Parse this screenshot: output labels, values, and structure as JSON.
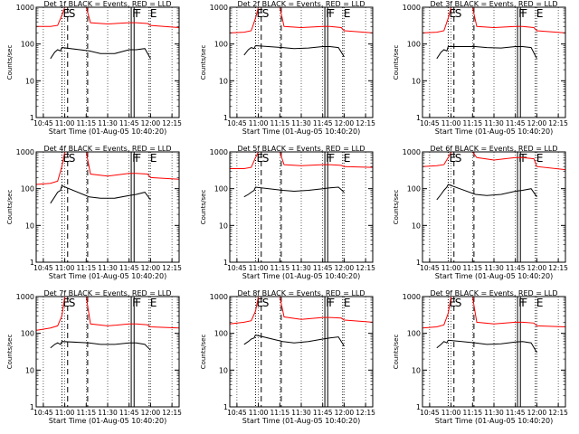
{
  "chart_data": {
    "type": "line",
    "y_scale": "log",
    "ylim": [
      1,
      1000
    ],
    "ytick_labels": [
      "1",
      "10",
      "100",
      "1000"
    ],
    "xtick_labels": [
      "10:45",
      "11:00",
      "11:15",
      "11:30",
      "11:45",
      "12:00",
      "12:15"
    ],
    "xlim": [
      "10:40",
      "12:20"
    ],
    "xlabel": "Start Time (01-Aug-05 10:40:20)",
    "ylabel": "Counts/sec",
    "grid": "dotted vertical lines",
    "colors": {
      "events": "#000000",
      "lld": "#ff0000"
    },
    "markers": [
      {
        "label": "E",
        "time": "10:58",
        "style": "dotted"
      },
      {
        "label": "S",
        "time": "11:02",
        "style": "dashed"
      },
      {
        "label": "",
        "time": "11:16",
        "style": "dashed"
      },
      {
        "label": "F",
        "time": "11:46.5",
        "style": "solid"
      },
      {
        "label": "F",
        "time": "11:48.5",
        "style": "solid"
      },
      {
        "label": "E",
        "time": "11:59",
        "style": "dotted"
      }
    ],
    "panels": [
      {
        "title": "Det 1f BLACK = Events, RED = LLD",
        "series": [
          {
            "name": "Events",
            "x": [
              "10:50",
              "10:53",
              "10:55",
              "10:57",
              "10:58",
              "11:17",
              "11:25",
              "11:35",
              "11:45",
              "11:50",
              "11:56",
              "12:00"
            ],
            "values": [
              40,
              60,
              70,
              65,
              80,
              65,
              55,
              55,
              70,
              70,
              75,
              40
            ]
          },
          {
            "name": "LLD",
            "x": [
              "10:40",
              "10:50",
              "10:55",
              "10:58",
              "11:00",
              "11:15",
              "11:18",
              "11:30",
              "11:45",
              "11:50",
              "11:58",
              "12:00",
              "12:20"
            ],
            "values": [
              300,
              300,
              320,
              600,
              1000,
              1000,
              380,
              350,
              380,
              380,
              360,
              320,
              280
            ]
          }
        ]
      },
      {
        "title": "Det 2f BLACK = Events, RED = LLD",
        "series": [
          {
            "name": "Events",
            "x": [
              "10:50",
              "10:53",
              "10:55",
              "10:57",
              "10:58",
              "11:17",
              "11:25",
              "11:35",
              "11:45",
              "11:50",
              "11:56",
              "12:00"
            ],
            "values": [
              50,
              70,
              80,
              75,
              90,
              80,
              75,
              78,
              85,
              85,
              80,
              45
            ]
          },
          {
            "name": "LLD",
            "x": [
              "10:40",
              "10:50",
              "10:55",
              "10:58",
              "11:00",
              "11:15",
              "11:18",
              "11:30",
              "11:45",
              "11:50",
              "11:58",
              "12:00",
              "12:20"
            ],
            "values": [
              200,
              210,
              230,
              500,
              1000,
              1000,
              300,
              280,
              300,
              300,
              280,
              230,
              200
            ]
          }
        ]
      },
      {
        "title": "Det 3f BLACK = Events, RED = LLD",
        "series": [
          {
            "name": "Events",
            "x": [
              "10:50",
              "10:53",
              "10:55",
              "10:57",
              "10:58",
              "11:17",
              "11:25",
              "11:35",
              "11:45",
              "11:50",
              "11:56",
              "12:00"
            ],
            "values": [
              40,
              60,
              70,
              65,
              85,
              85,
              80,
              78,
              85,
              85,
              80,
              40
            ]
          },
          {
            "name": "LLD",
            "x": [
              "10:40",
              "10:50",
              "10:55",
              "10:58",
              "11:00",
              "11:15",
              "11:18",
              "11:30",
              "11:45",
              "11:50",
              "11:58",
              "12:00",
              "12:20"
            ],
            "values": [
              200,
              210,
              230,
              500,
              1000,
              1000,
              300,
              280,
              300,
              300,
              280,
              230,
              200
            ]
          }
        ]
      },
      {
        "title": "Det 4f BLACK = Events, RED = LLD",
        "series": [
          {
            "name": "Events",
            "x": [
              "10:50",
              "10:53",
              "10:55",
              "10:57",
              "10:58",
              "11:17",
              "11:25",
              "11:35",
              "11:45",
              "11:50",
              "11:56",
              "12:00"
            ],
            "values": [
              40,
              60,
              80,
              90,
              120,
              60,
              55,
              55,
              65,
              70,
              80,
              50
            ]
          },
          {
            "name": "LLD",
            "x": [
              "10:40",
              "10:50",
              "10:55",
              "10:58",
              "11:00",
              "11:15",
              "11:18",
              "11:30",
              "11:45",
              "11:50",
              "11:58",
              "12:00",
              "12:20"
            ],
            "values": [
              130,
              140,
              160,
              400,
              1000,
              1000,
              250,
              220,
              260,
              260,
              250,
              200,
              180
            ]
          }
        ]
      },
      {
        "title": "Det 5f BLACK = Events, RED = LLD",
        "series": [
          {
            "name": "Events",
            "x": [
              "10:50",
              "10:53",
              "10:55",
              "10:57",
              "10:58",
              "11:17",
              "11:25",
              "11:35",
              "11:45",
              "11:50",
              "11:56",
              "12:00"
            ],
            "values": [
              60,
              70,
              80,
              90,
              110,
              90,
              85,
              90,
              100,
              105,
              110,
              80
            ]
          },
          {
            "name": "LLD",
            "x": [
              "10:40",
              "10:50",
              "10:55",
              "10:58",
              "11:00",
              "11:15",
              "11:18",
              "11:30",
              "11:45",
              "11:50",
              "11:58",
              "12:00",
              "12:20"
            ],
            "values": [
              350,
              350,
              380,
              700,
              1000,
              1000,
              450,
              420,
              450,
              450,
              430,
              400,
              380
            ]
          }
        ]
      },
      {
        "title": "Det 6f BLACK = Events, RED = LLD",
        "series": [
          {
            "name": "Events",
            "x": [
              "10:50",
              "10:53",
              "10:55",
              "10:57",
              "10:58",
              "11:17",
              "11:25",
              "11:35",
              "11:45",
              "11:50",
              "11:56",
              "12:00"
            ],
            "values": [
              50,
              70,
              90,
              110,
              130,
              70,
              65,
              70,
              85,
              90,
              100,
              60
            ]
          },
          {
            "name": "LLD",
            "x": [
              "10:40",
              "10:50",
              "10:55",
              "10:58",
              "11:00",
              "11:15",
              "11:18",
              "11:30",
              "11:45",
              "11:50",
              "11:58",
              "12:00",
              "12:20"
            ],
            "values": [
              400,
              420,
              450,
              700,
              1000,
              1000,
              700,
              600,
              700,
              700,
              650,
              400,
              330
            ]
          }
        ]
      },
      {
        "title": "Det 7f BLACK = Events, RED = LLD",
        "series": [
          {
            "name": "Events",
            "x": [
              "10:50",
              "10:53",
              "10:55",
              "10:57",
              "10:58",
              "11:17",
              "11:25",
              "11:35",
              "11:45",
              "11:50",
              "11:56",
              "12:00"
            ],
            "values": [
              40,
              50,
              55,
              50,
              60,
              55,
              50,
              50,
              55,
              55,
              50,
              35
            ]
          },
          {
            "name": "LLD",
            "x": [
              "10:40",
              "10:50",
              "10:55",
              "10:58",
              "11:00",
              "11:15",
              "11:18",
              "11:30",
              "11:45",
              "11:50",
              "11:58",
              "12:00",
              "12:20"
            ],
            "values": [
              120,
              140,
              160,
              300,
              1000,
              1000,
              180,
              160,
              180,
              180,
              170,
              150,
              140
            ]
          }
        ]
      },
      {
        "title": "Det 8f BLACK = Events, RED = LLD",
        "series": [
          {
            "name": "Events",
            "x": [
              "10:50",
              "10:53",
              "10:55",
              "10:57",
              "10:58",
              "11:17",
              "11:25",
              "11:35",
              "11:45",
              "11:50",
              "11:56",
              "12:00"
            ],
            "values": [
              50,
              60,
              70,
              75,
              90,
              60,
              55,
              60,
              70,
              75,
              80,
              45
            ]
          },
          {
            "name": "LLD",
            "x": [
              "10:40",
              "10:50",
              "10:55",
              "10:58",
              "11:00",
              "11:15",
              "11:18",
              "11:30",
              "11:45",
              "11:50",
              "11:58",
              "12:00",
              "12:20"
            ],
            "values": [
              180,
              200,
              220,
              400,
              1000,
              1000,
              280,
              240,
              270,
              270,
              260,
              230,
              200
            ]
          }
        ]
      },
      {
        "title": "Det 9f BLACK = Events, RED = LLD",
        "series": [
          {
            "name": "Events",
            "x": [
              "10:50",
              "10:53",
              "10:55",
              "10:57",
              "10:58",
              "11:17",
              "11:25",
              "11:35",
              "11:45",
              "11:50",
              "11:56",
              "12:00"
            ],
            "values": [
              40,
              50,
              60,
              55,
              65,
              55,
              50,
              52,
              58,
              60,
              55,
              30
            ]
          },
          {
            "name": "LLD",
            "x": [
              "10:40",
              "10:50",
              "10:55",
              "10:58",
              "11:00",
              "11:15",
              "11:18",
              "11:30",
              "11:45",
              "11:50",
              "11:58",
              "12:00",
              "12:20"
            ],
            "values": [
              140,
              150,
              170,
              350,
              1000,
              1000,
              200,
              180,
              200,
              200,
              190,
              160,
              150
            ]
          }
        ]
      }
    ]
  }
}
